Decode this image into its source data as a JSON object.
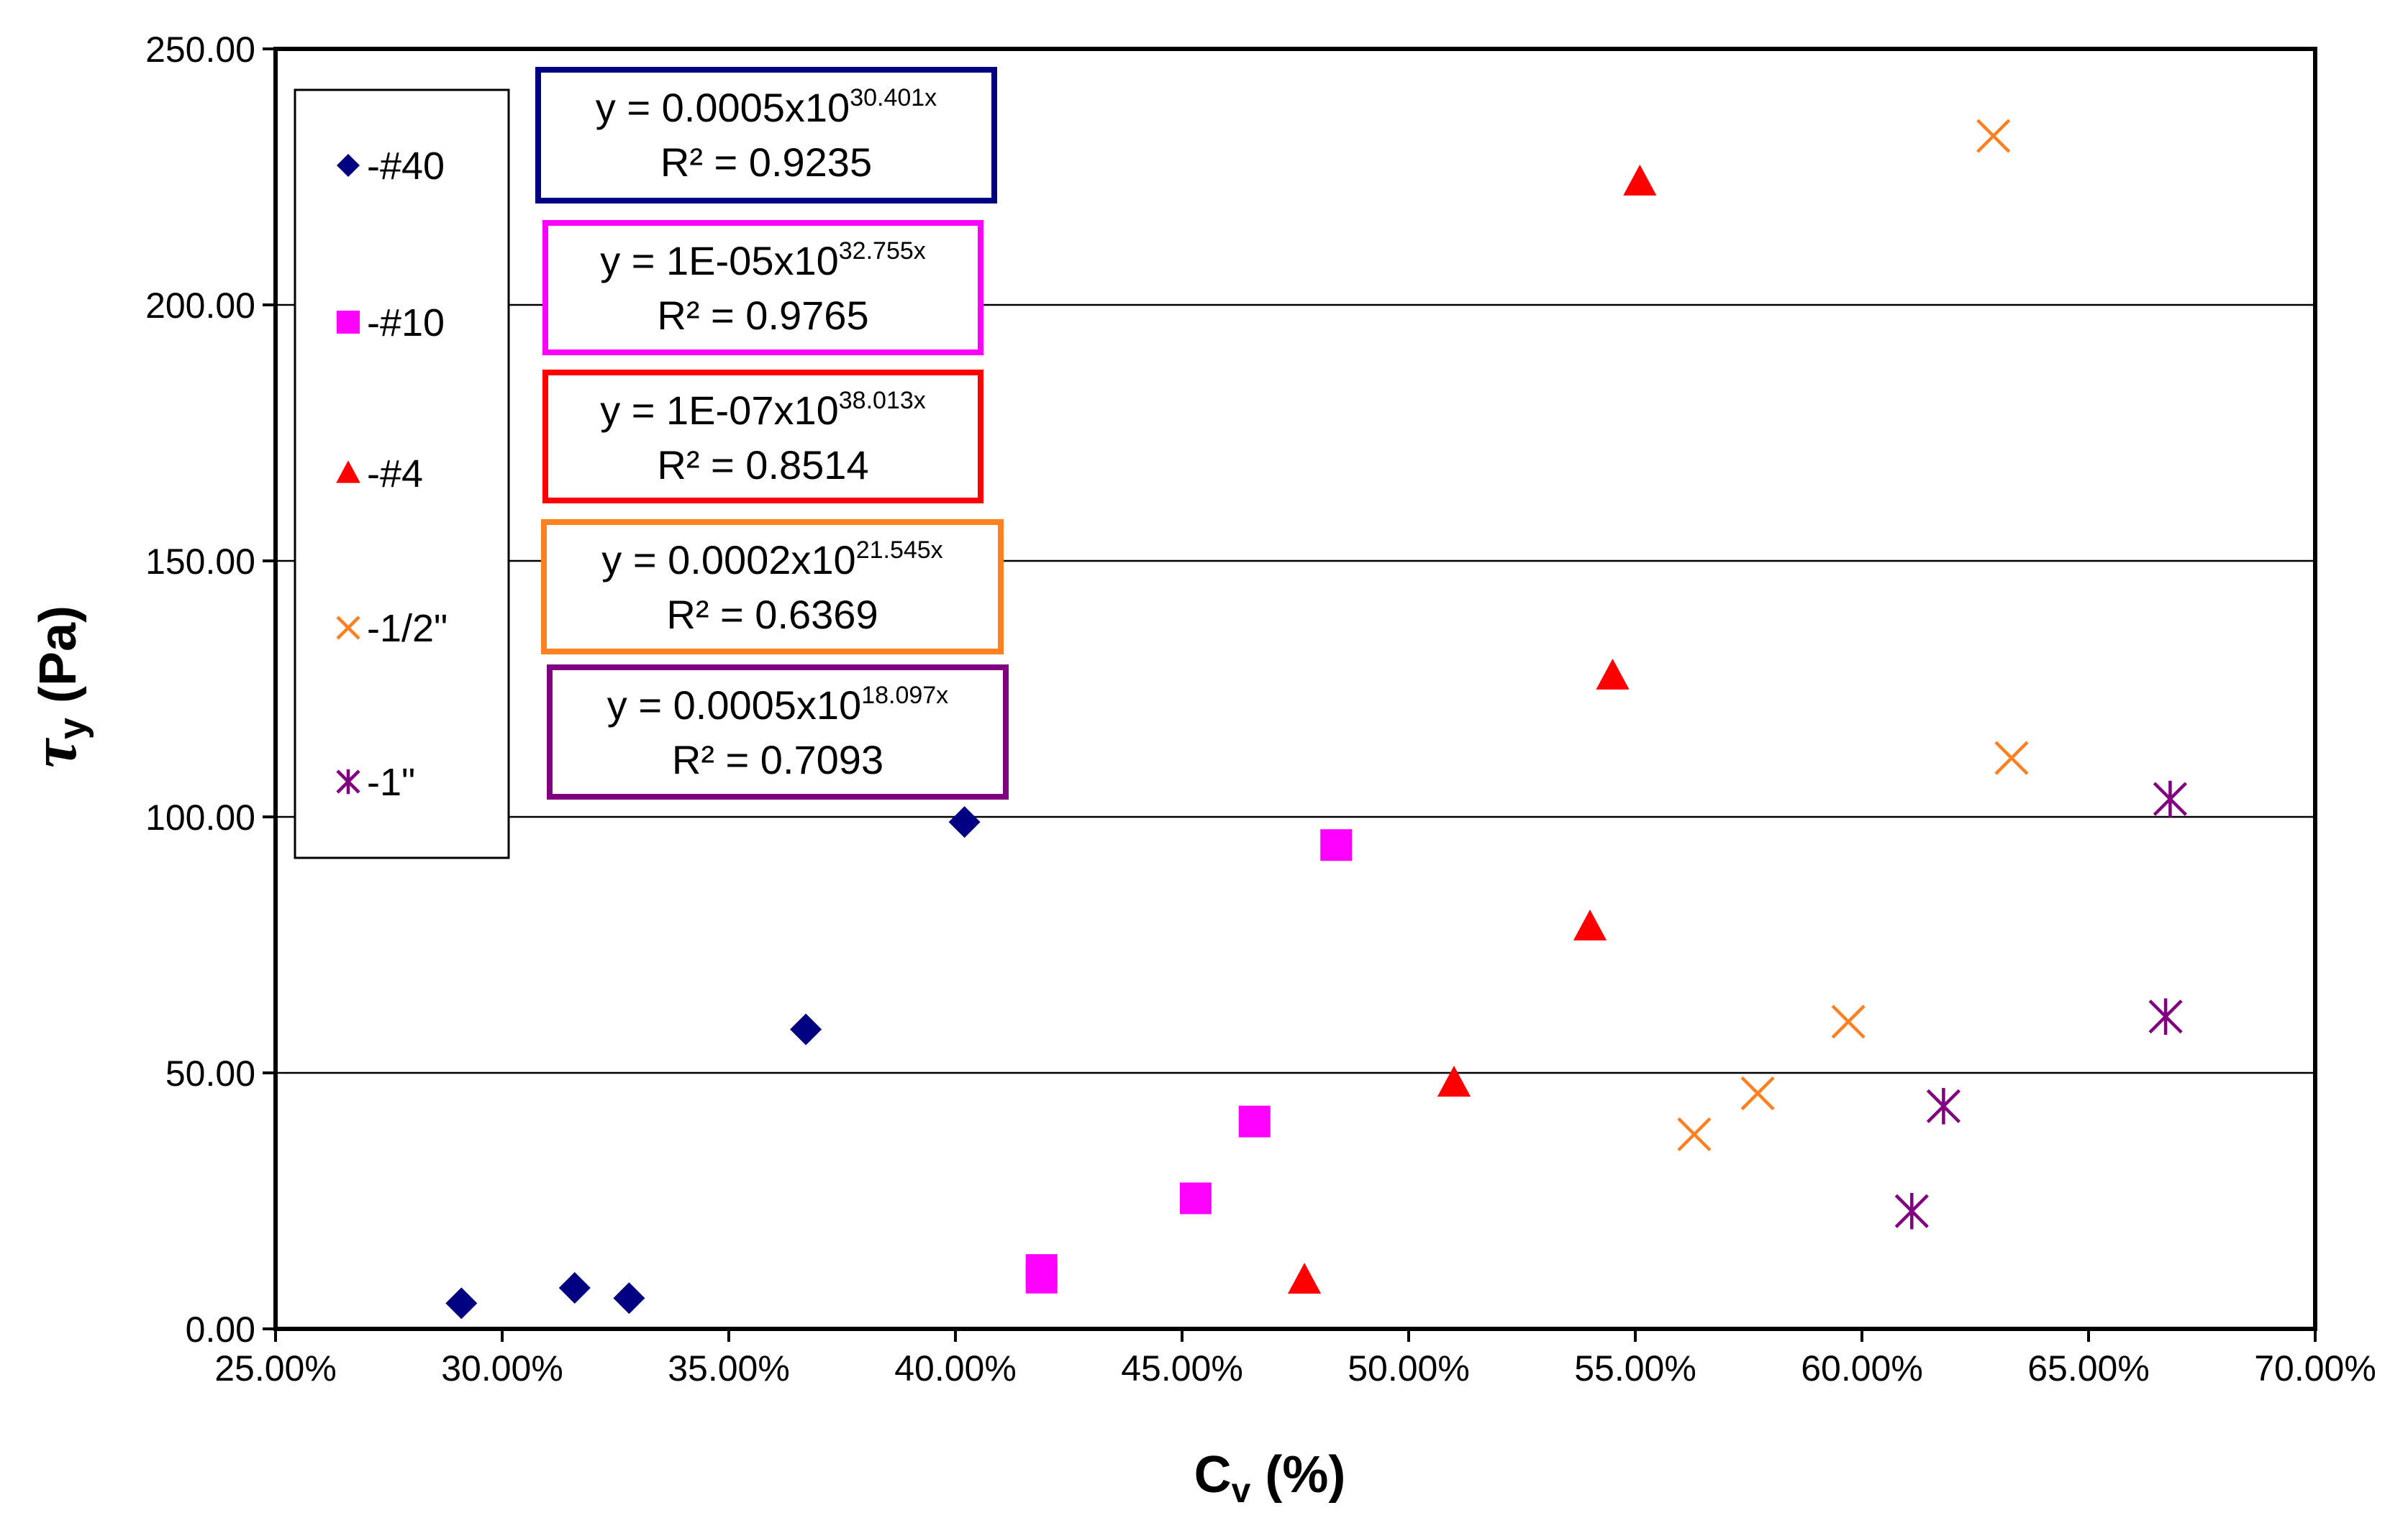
{
  "chart_data": {
    "type": "scatter",
    "title": "",
    "xlabel": "C",
    "xlabel_sub": "v",
    "xlabel_suffix": " (%)",
    "ylabel": "τ",
    "ylabel_sub": "y",
    "ylabel_suffix": " (Pa)",
    "xlim": [
      0.25,
      0.7
    ],
    "ylim": [
      0,
      250
    ],
    "x_ticks": [
      0.25,
      0.3,
      0.35,
      0.4,
      0.45,
      0.5,
      0.55,
      0.6,
      0.65,
      0.7
    ],
    "x_tick_labels": [
      "25.00%",
      "30.00%",
      "35.00%",
      "40.00%",
      "45.00%",
      "50.00%",
      "55.00%",
      "60.00%",
      "65.00%",
      "70.00%"
    ],
    "y_ticks": [
      0,
      50,
      100,
      150,
      200,
      250
    ],
    "y_tick_labels": [
      "0.00",
      "50.00",
      "100.00",
      "150.00",
      "200.00",
      "250.00"
    ],
    "grid": "horizontal",
    "legend_position": "top-left",
    "series": [
      {
        "name": "-#40",
        "marker": "diamond",
        "color": "#000080",
        "x": [
          0.291,
          0.316,
          0.328,
          0.367,
          0.402
        ],
        "y": [
          5,
          8,
          6,
          58.5,
          99
        ],
        "trend": {
          "a": 0.0005,
          "b": 30.401,
          "x_range": [
            0.291,
            0.4
          ]
        },
        "equation": "y = 0.0005x10",
        "exponent": "30.401x",
        "r2": "R² = 0.9235"
      },
      {
        "name": "-#10",
        "marker": "square",
        "color": "#ff00ff",
        "x": [
          0.419,
          0.419,
          0.453,
          0.466,
          0.484
        ],
        "y": [
          10,
          11.5,
          25.5,
          40.5,
          94.5
        ],
        "trend": {
          "a": 1e-05,
          "b": 32.755,
          "x_range": [
            0.419,
            0.484
          ]
        },
        "equation": "y = 1E-05x10",
        "exponent": "32.755x",
        "r2": "R² = 0.9765"
      },
      {
        "name": "-#4",
        "marker": "triangle",
        "color": "#ff0000",
        "x": [
          0.477,
          0.51,
          0.54,
          0.545,
          0.551
        ],
        "y": [
          9.5,
          48,
          78.5,
          127.5,
          224
        ],
        "trend": {
          "a": 1e-07,
          "b": 38.013,
          "x_range": [
            0.475,
            0.551
          ]
        },
        "equation": "y = 1E-07x10",
        "exponent": "38.013x",
        "r2": "R² = 0.8514"
      },
      {
        "name": "-1/2\"",
        "marker": "x",
        "color": "#ff8020",
        "x": [
          0.563,
          0.577,
          0.597,
          0.629,
          0.633
        ],
        "y": [
          38,
          46,
          60,
          233,
          111.5
        ],
        "trend": {
          "a": 0.0002,
          "b": 21.545,
          "x_range": [
            0.563,
            0.633
          ]
        },
        "equation": "y = 0.0002x10",
        "exponent": "21.545x",
        "r2": "R² = 0.6369"
      },
      {
        "name": "-1\"",
        "marker": "star",
        "color": "#800080",
        "x": [
          0.611,
          0.618,
          0.667,
          0.668
        ],
        "y": [
          23,
          43.5,
          61,
          103.5
        ],
        "trend": {
          "a": 0.0005,
          "b": 18.097,
          "x_range": [
            0.611,
            0.667
          ]
        },
        "equation": "y = 0.0005x10",
        "exponent": "18.097x",
        "r2": "R² = 0.7093"
      }
    ]
  }
}
